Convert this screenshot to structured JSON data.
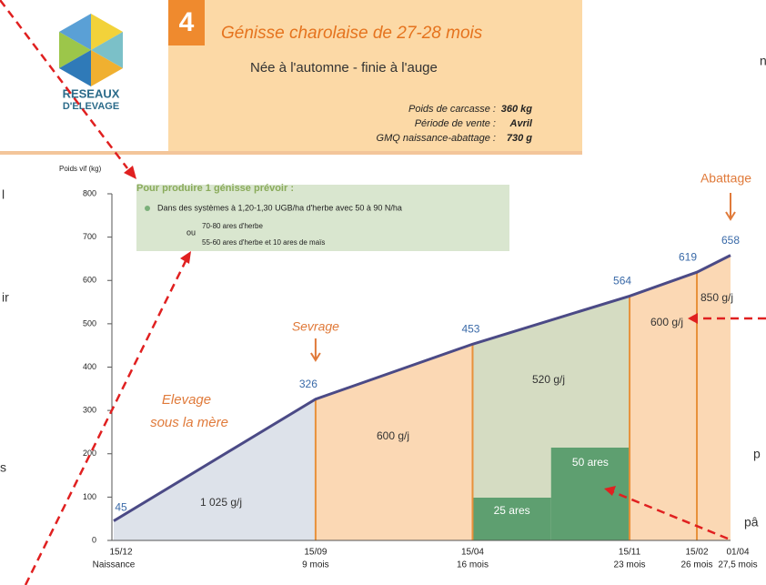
{
  "header": {
    "logo_line1": "RESEAUX",
    "logo_line2": "D'ELEVAGE",
    "number": "4",
    "title": "Génisse charolaise de 27-28 mois",
    "subtitle": "Née à l'automne - finie à l'auge",
    "info": [
      {
        "label": "Poids de carcasse :",
        "value": "360 kg"
      },
      {
        "label": "Période de vente :",
        "value": "Avril"
      },
      {
        "label": "GMQ naissance-abattage :",
        "value": "730 g"
      }
    ]
  },
  "box": {
    "title": "Pour produire 1 génisse prévoir :",
    "item": "Dans des systèmes à 1,20-1,30 UGB/ha d'herbe avec 50 à 90 N/ha",
    "or": "ou",
    "option1": "70-80 ares d'herbe",
    "option2": "55-60 ares d'herbe et 10 ares de maïs"
  },
  "margin_fragments": [
    "l",
    "ir",
    "s",
    "n",
    "p",
    "pâ"
  ],
  "chart_data": {
    "type": "line",
    "y_label": "Poids vif (kg)",
    "x": [
      0,
      9,
      16,
      23,
      26,
      27.5
    ],
    "xlim": [
      0,
      27.5
    ],
    "date_labels": [
      "15/12",
      "15/09",
      "15/04",
      "15/11",
      "15/02",
      "01/04"
    ],
    "age_labels": [
      "Naissance",
      "9 mois",
      "16 mois",
      "23 mois",
      "26 mois",
      "27,5 mois"
    ],
    "values": [
      45,
      326,
      453,
      564,
      619,
      658
    ],
    "color": "#4b4a86",
    "ylim": [
      0,
      800
    ],
    "yticks": [
      0,
      100,
      200,
      300,
      400,
      500,
      600,
      700,
      800
    ],
    "segment_labels": [
      "1 025 g/j",
      "600 g/j",
      "520 g/j",
      "600 g/j",
      "850 g/j"
    ],
    "segment_colors": [
      "#dde2ea",
      "#fbd8b4",
      "#d5dcc2",
      "#fbd8b4",
      "#fbd8b4"
    ],
    "pasture_labels": [
      "25 ares",
      "50 ares"
    ],
    "annotations": {
      "weaning": "Sevrage",
      "slaughter": "Abattage",
      "suckling1": "Elevage",
      "suckling2": "sous la mère"
    }
  }
}
